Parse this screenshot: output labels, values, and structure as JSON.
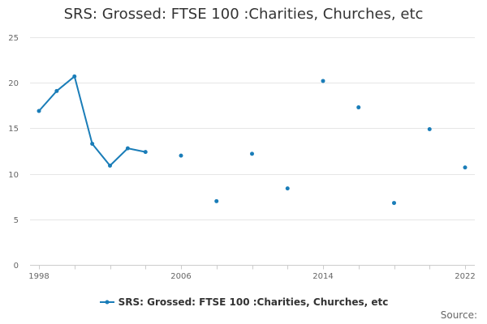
{
  "title": "SRS: Grossed: FTSE 100 :Charities, Churches, etc",
  "source_label": "Source:",
  "colors": {
    "series": "#1a7db8",
    "grid": "#e6e6e6",
    "axis": "#cccccc",
    "text": "#333333",
    "tick_text": "#666666"
  },
  "chart_data": {
    "type": "line",
    "title": "SRS: Grossed: FTSE 100 :Charities, Churches, etc",
    "xlabel": "",
    "ylabel": "",
    "xlim": [
      1998,
      2022
    ],
    "ylim": [
      0,
      25
    ],
    "x_ticks": [
      1998,
      2006,
      2014,
      2022
    ],
    "y_ticks": [
      0,
      5,
      10,
      15,
      20,
      25
    ],
    "grid": "horizontal",
    "legend_position": "bottom",
    "series": [
      {
        "name": "SRS: Grossed: FTSE 100 :Charities, Churches, etc",
        "points": [
          {
            "x": 1998,
            "y": 16.9
          },
          {
            "x": 1999,
            "y": 19.1
          },
          {
            "x": 2000,
            "y": 20.7
          },
          {
            "x": 2001,
            "y": 13.3
          },
          {
            "x": 2002,
            "y": 10.9
          },
          {
            "x": 2003,
            "y": 12.8
          },
          {
            "x": 2004,
            "y": 12.4
          },
          {
            "x": 2006,
            "y": 12.0
          },
          {
            "x": 2008,
            "y": 7.0
          },
          {
            "x": 2010,
            "y": 12.2
          },
          {
            "x": 2012,
            "y": 8.4
          },
          {
            "x": 2014,
            "y": 20.2
          },
          {
            "x": 2016,
            "y": 17.3
          },
          {
            "x": 2018,
            "y": 6.8
          },
          {
            "x": 2020,
            "y": 14.9
          },
          {
            "x": 2022,
            "y": 10.7
          }
        ]
      }
    ]
  }
}
